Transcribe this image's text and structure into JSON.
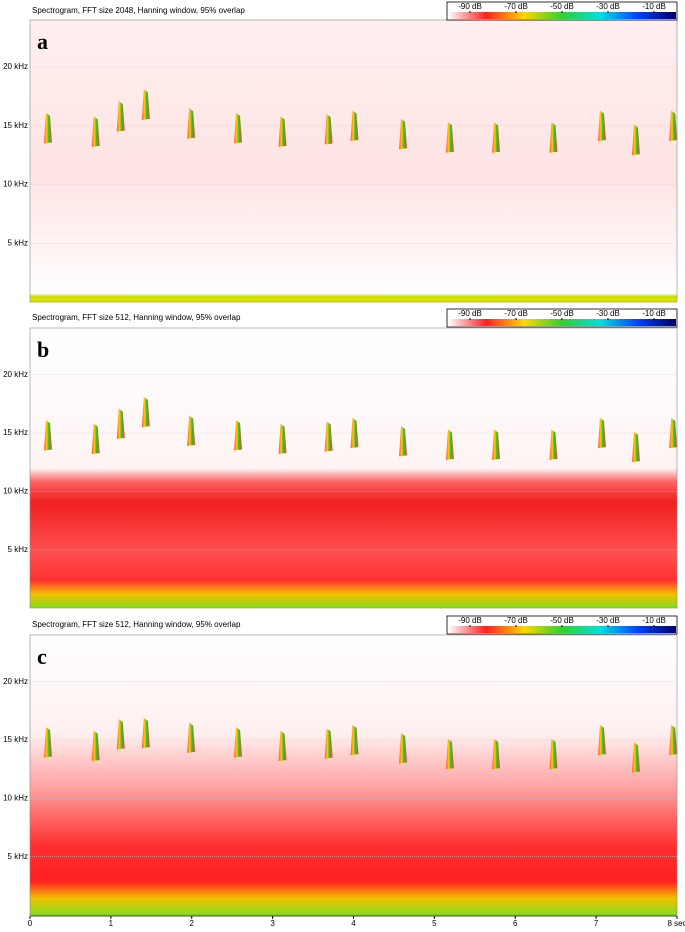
{
  "chart_data": [
    {
      "type": "spectrogram",
      "title": "Spectrogram, FFT size 2048, Hanning window, 95% overlap",
      "label": "a",
      "clim": [
        -100,
        0
      ],
      "cticks": [
        {
          "value": -90,
          "label": "-90 dB"
        },
        {
          "value": -70,
          "label": "-70 dB"
        },
        {
          "value": -50,
          "label": "-50 dB"
        },
        {
          "value": -30,
          "label": "-30 dB"
        },
        {
          "value": -10,
          "label": "-10 dB"
        }
      ],
      "colormap": [
        "#ffffff",
        "#ff2020",
        "#ffd800",
        "#30d030",
        "#00e0e0",
        "#0040ff",
        "#000060"
      ],
      "xlim": [
        0,
        8
      ],
      "ylim": [
        0,
        24
      ],
      "yticks": [
        {
          "value": 5,
          "label": "5 kHz"
        },
        {
          "value": 10,
          "label": "10 kHz"
        },
        {
          "value": 15,
          "label": "15 kHz"
        },
        {
          "value": 20,
          "label": "20 kHz"
        }
      ],
      "grid": true,
      "x": [
        0.21,
        0.8,
        1.11,
        1.42,
        1.98,
        2.56,
        3.11,
        3.68,
        4.0,
        4.6,
        5.18,
        5.75,
        6.46,
        7.06,
        7.48,
        7.94
      ],
      "values": [
        14.8,
        14.5,
        15.8,
        16.8,
        15.2,
        14.8,
        14.5,
        14.7,
        15.0,
        14.3,
        14.0,
        14.0,
        14.0,
        15.0,
        13.8,
        15.0
      ]
    },
    {
      "type": "spectrogram",
      "title": "Spectrogram, FFT size 512, Hanning window, 95% overlap",
      "label": "b",
      "clim": [
        -100,
        0
      ],
      "cticks": [
        {
          "value": -90,
          "label": "-90 dB"
        },
        {
          "value": -70,
          "label": "-70 dB"
        },
        {
          "value": -50,
          "label": "-50 dB"
        },
        {
          "value": -30,
          "label": "-30 dB"
        },
        {
          "value": -10,
          "label": "-10 dB"
        }
      ],
      "colormap": [
        "#ffffff",
        "#ff2020",
        "#ffd800",
        "#30d030",
        "#00e0e0",
        "#0040ff",
        "#000060"
      ],
      "xlim": [
        0,
        8
      ],
      "ylim": [
        0,
        24
      ],
      "yticks": [
        {
          "value": 5,
          "label": "5 kHz"
        },
        {
          "value": 10,
          "label": "10 kHz"
        },
        {
          "value": 15,
          "label": "15 kHz"
        },
        {
          "value": 20,
          "label": "20 kHz"
        }
      ],
      "grid": true,
      "x": [
        0.21,
        0.8,
        1.11,
        1.42,
        1.98,
        2.56,
        3.11,
        3.68,
        4.0,
        4.6,
        5.18,
        5.75,
        6.46,
        7.06,
        7.48,
        7.94
      ],
      "values": [
        14.8,
        14.5,
        15.8,
        16.8,
        15.2,
        14.8,
        14.5,
        14.7,
        15.0,
        14.3,
        14.0,
        14.0,
        14.0,
        15.0,
        13.8,
        15.0
      ]
    },
    {
      "type": "spectrogram",
      "title": "Spectrogram, FFT size 512, Hanning window, 95% overlap",
      "label": "c",
      "clim": [
        -100,
        0
      ],
      "cticks": [
        {
          "value": -90,
          "label": "-90 dB"
        },
        {
          "value": -70,
          "label": "-70 dB"
        },
        {
          "value": -50,
          "label": "-50 dB"
        },
        {
          "value": -30,
          "label": "-30 dB"
        },
        {
          "value": -10,
          "label": "-10 dB"
        }
      ],
      "colormap": [
        "#ffffff",
        "#ff2020",
        "#ffd800",
        "#30d030",
        "#00e0e0",
        "#0040ff",
        "#000060"
      ],
      "xlim": [
        0,
        8
      ],
      "ylim": [
        0,
        24
      ],
      "xticks": [
        0,
        1,
        2,
        3,
        4,
        5,
        6,
        7,
        {
          "value": 8,
          "label": "8 sec"
        }
      ],
      "yticks": [
        {
          "value": 5,
          "label": "5 kHz"
        },
        {
          "value": 10,
          "label": "10 kHz"
        },
        {
          "value": 15,
          "label": "15 kHz"
        },
        {
          "value": 20,
          "label": "20 kHz"
        }
      ],
      "grid": true,
      "x": [
        0.21,
        0.8,
        1.11,
        1.42,
        1.98,
        2.56,
        3.11,
        3.68,
        4.0,
        4.6,
        5.18,
        5.75,
        6.46,
        7.06,
        7.48,
        7.94
      ],
      "values": [
        14.8,
        14.5,
        15.5,
        15.6,
        15.2,
        14.8,
        14.5,
        14.7,
        15.0,
        14.3,
        13.8,
        13.8,
        13.8,
        15.0,
        13.5,
        15.0
      ]
    }
  ]
}
